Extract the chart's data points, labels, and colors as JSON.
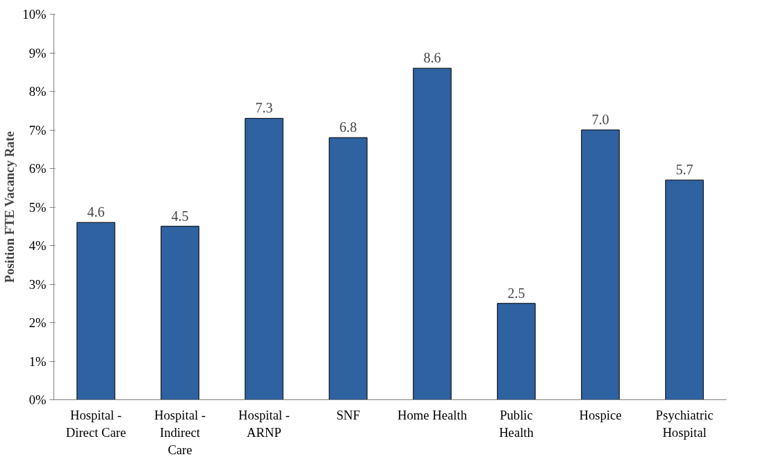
{
  "chart_data": {
    "type": "bar",
    "ylabel": "Position FTE Vacancy Rate",
    "categories": [
      "Hospital - Direct Care",
      "Hospital - Indirect Care",
      "Hospital - ARNP",
      "SNF",
      "Home Health",
      "Public Health",
      "Hospice",
      "Psychiatric Hospital"
    ],
    "values": [
      4.6,
      4.5,
      7.3,
      6.8,
      8.6,
      2.5,
      7.0,
      5.7
    ],
    "value_labels": [
      "4.6",
      "4.5",
      "7.3",
      "6.8",
      "8.6",
      "2.5",
      "7.0",
      "5.7"
    ],
    "color": "#2e62a0",
    "ylim": [
      0,
      10
    ],
    "yticks": [
      {
        "value": 0,
        "label": "0%"
      },
      {
        "value": 1,
        "label": "1%"
      },
      {
        "value": 2,
        "label": "2%"
      },
      {
        "value": 3,
        "label": "3%"
      },
      {
        "value": 4,
        "label": "4%"
      },
      {
        "value": 5,
        "label": "5%"
      },
      {
        "value": 6,
        "label": "6%"
      },
      {
        "value": 7,
        "label": "7%"
      },
      {
        "value": 8,
        "label": "8%"
      },
      {
        "value": 9,
        "label": "9%"
      },
      {
        "value": 10,
        "label": "10%"
      }
    ],
    "grid": false
  }
}
